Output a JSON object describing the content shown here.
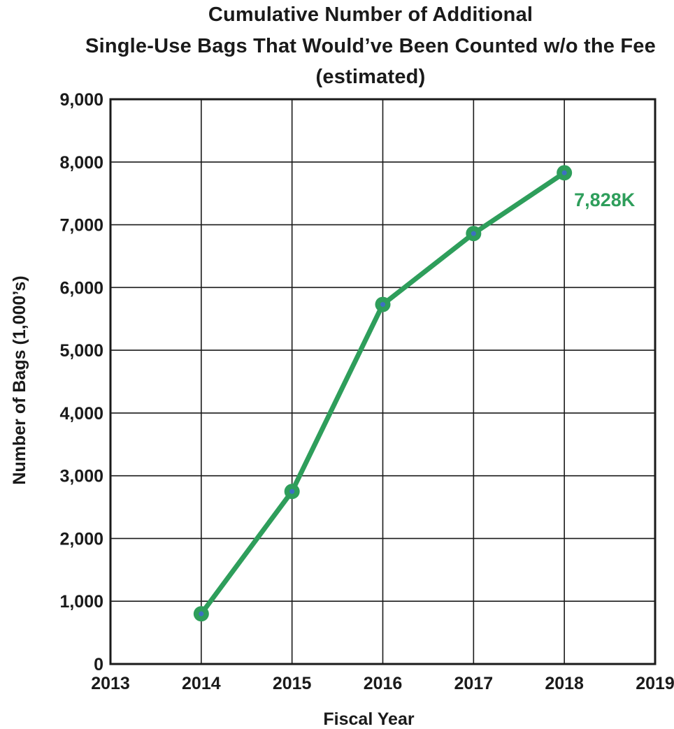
{
  "chart_data": {
    "type": "line",
    "title_lines": [
      "Cumulative Number of Additional",
      "Single-Use Bags That Would’ve Been Counted w/o the Fee",
      "(estimated)"
    ],
    "xlabel": "Fiscal Year",
    "ylabel": "Number of Bags (1,000’s)",
    "x_ticks": [
      "2013",
      "2014",
      "2015",
      "2016",
      "2017",
      "2018",
      "2019"
    ],
    "y_ticks": [
      "0",
      "1,000",
      "2,000",
      "3,000",
      "4,000",
      "5,000",
      "6,000",
      "7,000",
      "8,000",
      "9,000"
    ],
    "xlim": [
      2013,
      2019
    ],
    "ylim": [
      0,
      9000
    ],
    "grid": true,
    "series": [
      {
        "x": [
          2014,
          2015,
          2016,
          2017,
          2018
        ],
        "values": [
          800,
          2750,
          5730,
          6860,
          7828
        ]
      }
    ],
    "annotations": [
      {
        "text": "7,828K",
        "x": 2018,
        "y": 7828
      }
    ],
    "colors": {
      "line": "#2e9e5b",
      "marker_center": "#3d6fc4",
      "annotation": "#2e9e5b",
      "grid": "#1a1a1a"
    }
  }
}
